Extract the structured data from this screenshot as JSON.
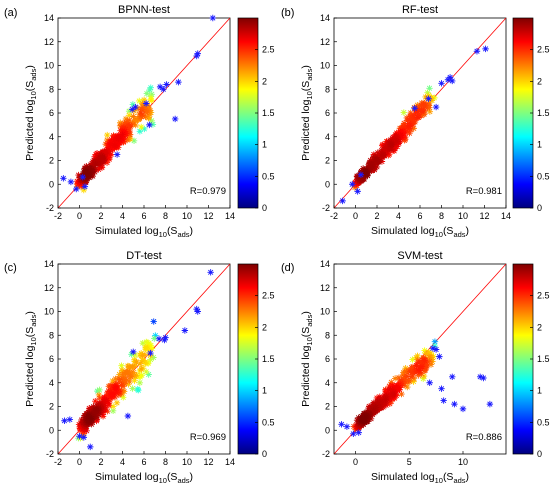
{
  "figure": {
    "panels": [
      "(a)",
      "(b)",
      "(c)",
      "(d)"
    ]
  },
  "colormap": {
    "stops": [
      "#00007f",
      "#0000ff",
      "#007fff",
      "#00ffff",
      "#7fff7f",
      "#ffff00",
      "#ff7f00",
      "#ff0000",
      "#7f0000"
    ],
    "line_color": "#ff0000",
    "marker_color": "#1a1aff"
  },
  "chart_data": [
    {
      "type": "scatter",
      "label": "(a)",
      "title": "BPNN-test",
      "xlabel": "Simulated log",
      "ylabel": "Predicted log",
      "label_sub": "10",
      "label_arg": "(S",
      "label_arg_sub": "ads",
      "label_close": ")",
      "r_text": "R=0.979",
      "xlim": [
        -2,
        14
      ],
      "ylim": [
        -2,
        14
      ],
      "xticks": [
        "-2",
        "0",
        "2",
        "4",
        "6",
        "8",
        "10",
        "12",
        "14"
      ],
      "yticks": [
        "-2",
        "0",
        "2",
        "4",
        "6",
        "8",
        "10",
        "12",
        "14"
      ],
      "colorbar": {
        "range": [
          0,
          3
        ],
        "ticks": [
          "0",
          "0.5",
          "1",
          "1.5",
          "2",
          "2.5"
        ]
      },
      "reference_line": [
        [
          -2,
          -2
        ],
        [
          14,
          14
        ]
      ],
      "outliers": [
        [
          -1.5,
          0.5
        ],
        [
          -0.8,
          0.2
        ],
        [
          -0.3,
          -0.4
        ],
        [
          0.3,
          0.6
        ],
        [
          0.5,
          -0.2
        ],
        [
          7.5,
          8.2
        ],
        [
          7.8,
          8.0
        ],
        [
          8.1,
          8.4
        ],
        [
          9.2,
          8.6
        ],
        [
          12.4,
          14.0
        ],
        [
          11.0,
          11.0
        ],
        [
          10.9,
          10.8
        ],
        [
          8.9,
          5.5
        ],
        [
          6.5,
          5.0
        ],
        [
          4.9,
          6.3
        ],
        [
          5.2,
          6.5
        ],
        [
          6.2,
          6.8
        ],
        [
          3.5,
          2.5
        ]
      ],
      "cloud": {
        "x0": 0.3,
        "x1": 6.8,
        "slope": 1.0,
        "offset": 0.2,
        "spread": 0.6,
        "n": 340
      }
    },
    {
      "type": "scatter",
      "label": "(b)",
      "title": "RF-test",
      "xlabel": "Simulated log",
      "ylabel": "Predicted log",
      "label_sub": "10",
      "label_arg": "(S",
      "label_arg_sub": "ads",
      "label_close": ")",
      "r_text": "R=0.981",
      "xlim": [
        -2,
        14
      ],
      "ylim": [
        -2,
        14
      ],
      "xticks": [
        "-2",
        "0",
        "2",
        "4",
        "6",
        "8",
        "10",
        "12",
        "14"
      ],
      "yticks": [
        "-2",
        "0",
        "2",
        "4",
        "6",
        "8",
        "10",
        "12",
        "14"
      ],
      "colorbar": {
        "range": [
          0,
          3
        ],
        "ticks": [
          "0",
          "0.5",
          "1",
          "1.5",
          "2",
          "2.5"
        ]
      },
      "reference_line": [
        [
          -2,
          -2
        ],
        [
          14,
          14
        ]
      ],
      "outliers": [
        [
          -1.2,
          -1.4
        ],
        [
          -0.3,
          0.0
        ],
        [
          0.2,
          -0.6
        ],
        [
          0.5,
          0.8
        ],
        [
          8.0,
          8.5
        ],
        [
          8.6,
          8.8
        ],
        [
          8.8,
          9.0
        ],
        [
          9.0,
          8.7
        ],
        [
          11.3,
          11.2
        ],
        [
          12.1,
          11.4
        ],
        [
          7.5,
          6.5
        ],
        [
          6.8,
          7.2
        ],
        [
          5.5,
          6.4
        ]
      ],
      "cloud": {
        "x0": 0.3,
        "x1": 7.0,
        "slope": 1.0,
        "offset": 0.1,
        "spread": 0.45,
        "n": 340
      }
    },
    {
      "type": "scatter",
      "label": "(c)",
      "title": "DT-test",
      "xlabel": "Simulated log",
      "ylabel": "Predicted log",
      "label_sub": "10",
      "label_arg": "(S",
      "label_arg_sub": "ads",
      "label_close": ")",
      "r_text": "R=0.969",
      "xlim": [
        -2,
        14
      ],
      "ylim": [
        -2,
        14
      ],
      "xticks": [
        "-2",
        "0",
        "2",
        "4",
        "6",
        "8",
        "10",
        "12",
        "14"
      ],
      "yticks": [
        "-2",
        "0",
        "2",
        "4",
        "6",
        "8",
        "10",
        "12",
        "14"
      ],
      "colorbar": {
        "range": [
          0,
          3
        ],
        "ticks": [
          "0",
          "0.5",
          "1",
          "1.5",
          "2",
          "2.5"
        ]
      },
      "reference_line": [
        [
          -2,
          -2
        ],
        [
          14,
          14
        ]
      ],
      "outliers": [
        [
          -1.4,
          0.8
        ],
        [
          -0.9,
          0.9
        ],
        [
          0.0,
          -0.5
        ],
        [
          0.4,
          -0.6
        ],
        [
          1.0,
          -1.4
        ],
        [
          7.4,
          7.7
        ],
        [
          7.9,
          7.6
        ],
        [
          8.0,
          7.8
        ],
        [
          9.8,
          8.4
        ],
        [
          10.9,
          10.2
        ],
        [
          11.0,
          10.0
        ],
        [
          12.2,
          13.3
        ],
        [
          4.5,
          1.2
        ],
        [
          6.6,
          6.5
        ],
        [
          5.0,
          6.6
        ]
      ],
      "cloud": {
        "x0": 0.3,
        "x1": 6.8,
        "slope": 1.0,
        "offset": 0.1,
        "spread": 0.7,
        "n": 340
      }
    },
    {
      "type": "scatter",
      "label": "(d)",
      "title": "SVM-test",
      "xlabel": "Simulated log",
      "ylabel": "Predicted log",
      "label_sub": "10",
      "label_arg": "(S",
      "label_arg_sub": "ads",
      "label_close": ")",
      "r_text": "R=0.886",
      "xlim": [
        -2,
        14
      ],
      "ylim": [
        -2,
        14
      ],
      "xticks": [
        "0",
        "5",
        "10"
      ],
      "xtick_values": [
        0,
        5,
        10
      ],
      "yticks": [
        "-2",
        "0",
        "2",
        "4",
        "6",
        "8",
        "10",
        "12",
        "14"
      ],
      "colorbar": {
        "range": [
          0,
          3
        ],
        "ticks": [
          "0",
          "0.5",
          "1",
          "1.5",
          "2",
          "2.5"
        ]
      },
      "reference_line": [
        [
          -2,
          -2
        ],
        [
          14,
          14
        ]
      ],
      "outliers": [
        [
          -1.3,
          0.5
        ],
        [
          -0.8,
          0.3
        ],
        [
          -0.2,
          -0.3
        ],
        [
          0.3,
          -0.2
        ],
        [
          7.5,
          6.8
        ],
        [
          7.8,
          6.2
        ],
        [
          8.0,
          3.5
        ],
        [
          8.2,
          2.5
        ],
        [
          9.0,
          4.5
        ],
        [
          9.2,
          2.2
        ],
        [
          10.0,
          1.8
        ],
        [
          11.6,
          4.5
        ],
        [
          11.9,
          4.4
        ],
        [
          12.5,
          2.2
        ],
        [
          7.2,
          6.9
        ],
        [
          6.9,
          4.0
        ]
      ],
      "cloud": {
        "x0": 0.4,
        "x1": 7.2,
        "slope": 0.85,
        "offset": 0.3,
        "spread": 0.5,
        "n": 320
      }
    }
  ]
}
